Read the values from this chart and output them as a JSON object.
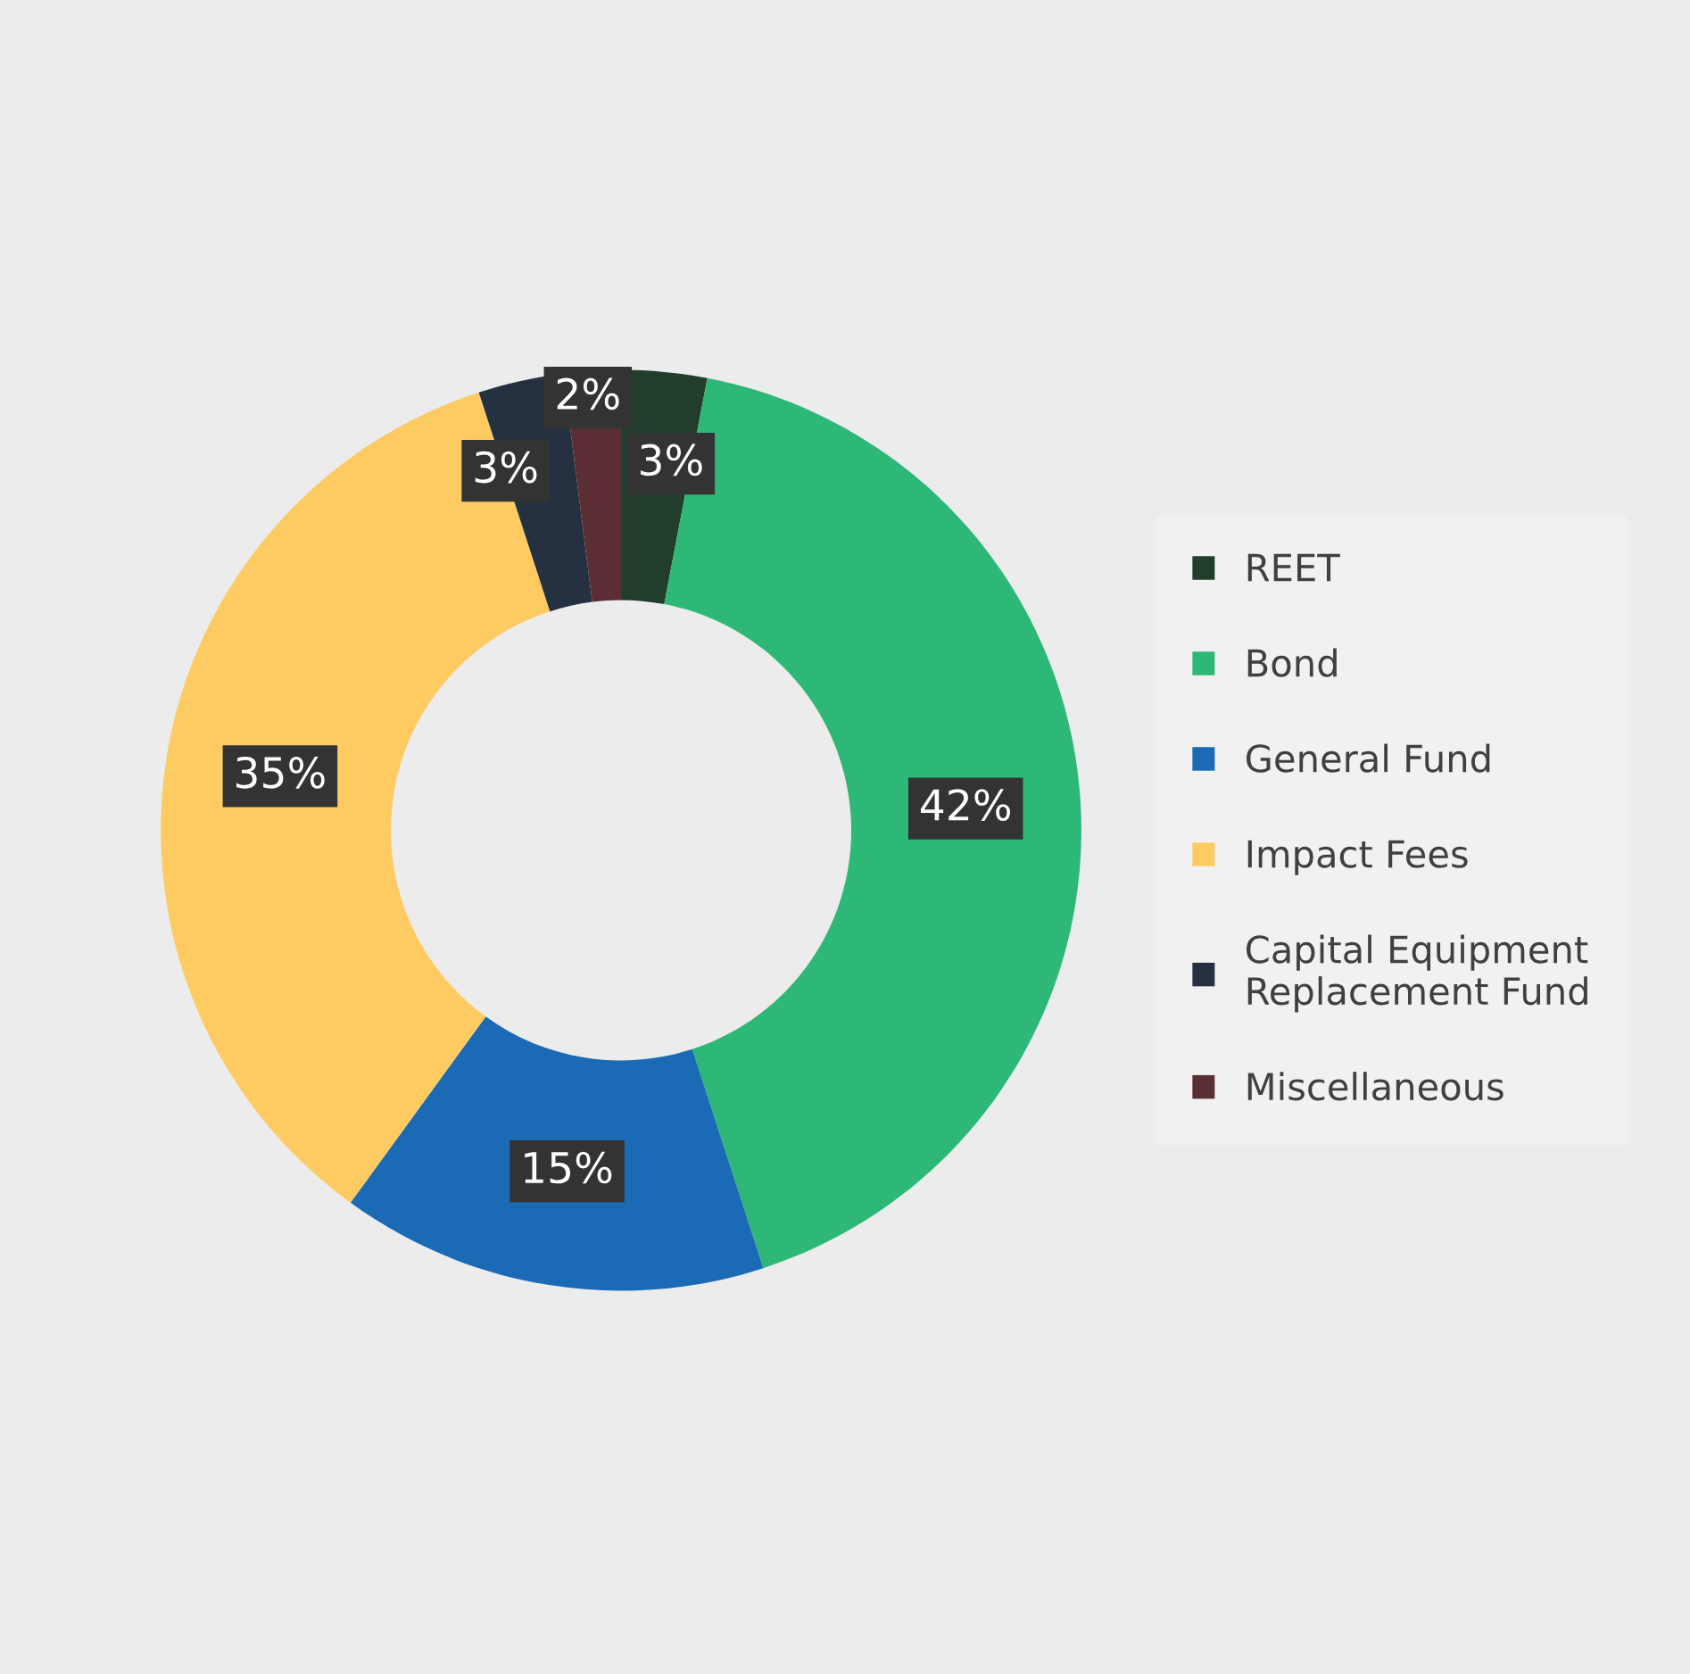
{
  "chart_data": {
    "type": "donut",
    "categories": [
      "REET",
      "Bond",
      "General Fund",
      "Impact Fees",
      "Capital Equipment Replacement Fund",
      "Miscellaneous"
    ],
    "values": [
      3,
      42,
      15,
      35,
      3,
      2
    ],
    "colors": [
      "#213d2b",
      "#2eb877",
      "#1b6ab5",
      "#fecb62",
      "#253040",
      "#5a2e33"
    ],
    "value_labels": [
      "3%",
      "42%",
      "15%",
      "35%",
      "3%",
      "2%"
    ],
    "legend": "right"
  }
}
